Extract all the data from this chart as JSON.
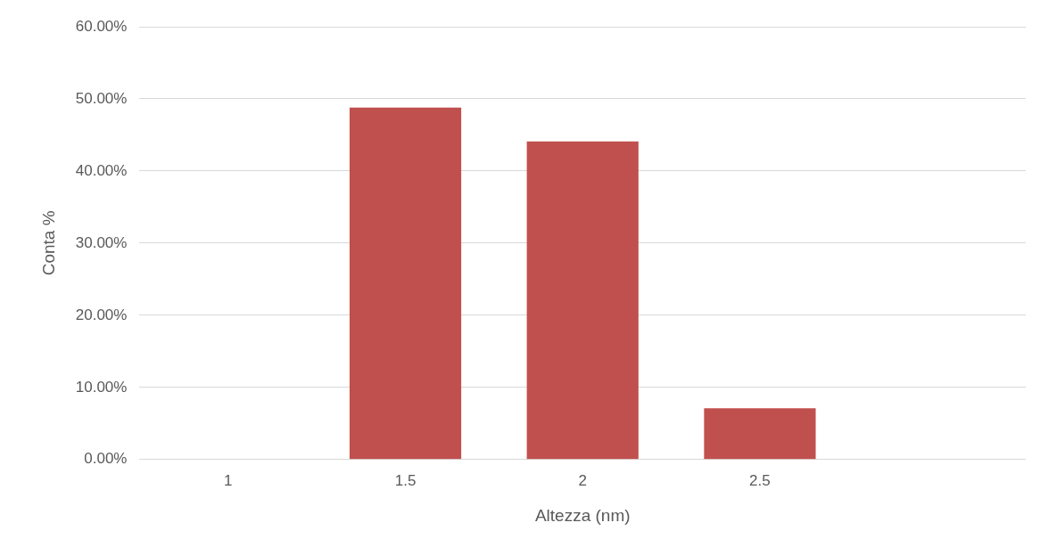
{
  "chart_data": {
    "type": "bar",
    "xlabel": "Altezza (nm)",
    "ylabel": "Conta %",
    "categories": [
      "1",
      "1.5",
      "2",
      "2.5",
      null
    ],
    "values": [
      0,
      48.8,
      44.1,
      7.1,
      0
    ],
    "color": "#c0504d",
    "ylim": [
      0,
      60
    ],
    "yticks": [
      {
        "value": 0,
        "label": "0.00%"
      },
      {
        "value": 10,
        "label": "10.00%"
      },
      {
        "value": 20,
        "label": "20.00%"
      },
      {
        "value": 30,
        "label": "30.00%"
      },
      {
        "value": 40,
        "label": "40.00%"
      },
      {
        "value": 50,
        "label": "50.00%"
      },
      {
        "value": 60,
        "label": "60.00%"
      }
    ],
    "grid": "y"
  }
}
